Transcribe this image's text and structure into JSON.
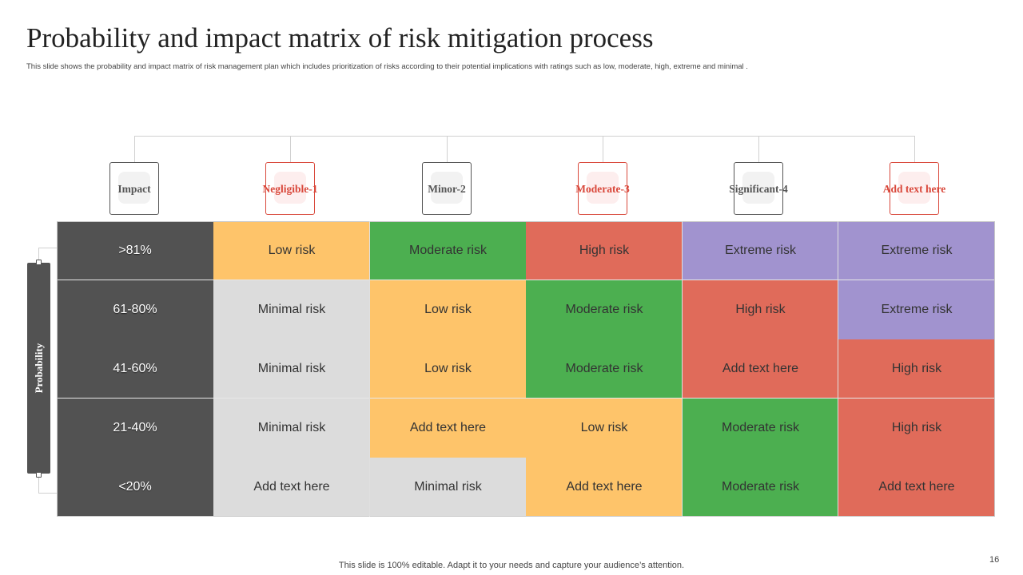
{
  "title": "Probability and impact matrix of risk mitigation process",
  "subtitle": "This slide shows the probability and impact matrix of risk management  plan  which includes prioritization of risks according to their potential implications  with ratings such as low, moderate, high, extreme and minimal  .",
  "axis": {
    "probability_label": "Probability"
  },
  "headers": [
    "Impact",
    "Negligible-1",
    "Minor-2",
    "Moderate-3",
    "Significant-4",
    "Add text here"
  ],
  "rows": [
    ">81%",
    "61-80%",
    "41-60%",
    "21-40%",
    "<20%"
  ],
  "cells": {
    "r1": [
      "Low risk",
      "Moderate risk",
      "High risk",
      "Extreme risk",
      "Extreme risk"
    ],
    "r2": [
      "Minimal risk",
      "Low risk",
      "Moderate risk",
      "High risk",
      "Extreme risk"
    ],
    "r3": [
      "Minimal risk",
      "Low risk",
      "Moderate risk",
      "Add text here",
      "High risk"
    ],
    "r4": [
      "Minimal risk",
      "Add text here",
      "Low risk",
      "Moderate risk",
      "High risk"
    ],
    "r5": [
      "Add text here",
      "Minimal risk",
      "Add text here",
      "Moderate risk",
      "Add text here"
    ]
  },
  "colors": {
    "dark": "#525252",
    "yellow": "#fec46a",
    "green": "#4caf50",
    "red": "#e06b5a",
    "purple": "#a193cf",
    "gray": "#dcdcdc",
    "accent_red": "#d9483b"
  },
  "footer": "This slide is 100% editable. Adapt it to your needs and capture your audience’s attention.",
  "page_number": "16"
}
